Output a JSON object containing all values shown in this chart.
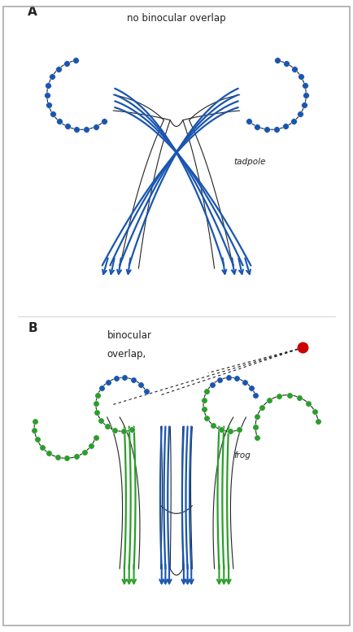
{
  "bg_color": "#ffffff",
  "border_color": "#888888",
  "blue": "#1a56b0",
  "green": "#2b9e2b",
  "red": "#cc0000",
  "black": "#222222",
  "gray": "#555555",
  "label_A": "A",
  "label_B": "B",
  "title_A": "no binocular overlap",
  "title_B": "binocular\noverlap,",
  "label_tadpole": "tadpole",
  "label_frog": "frog"
}
